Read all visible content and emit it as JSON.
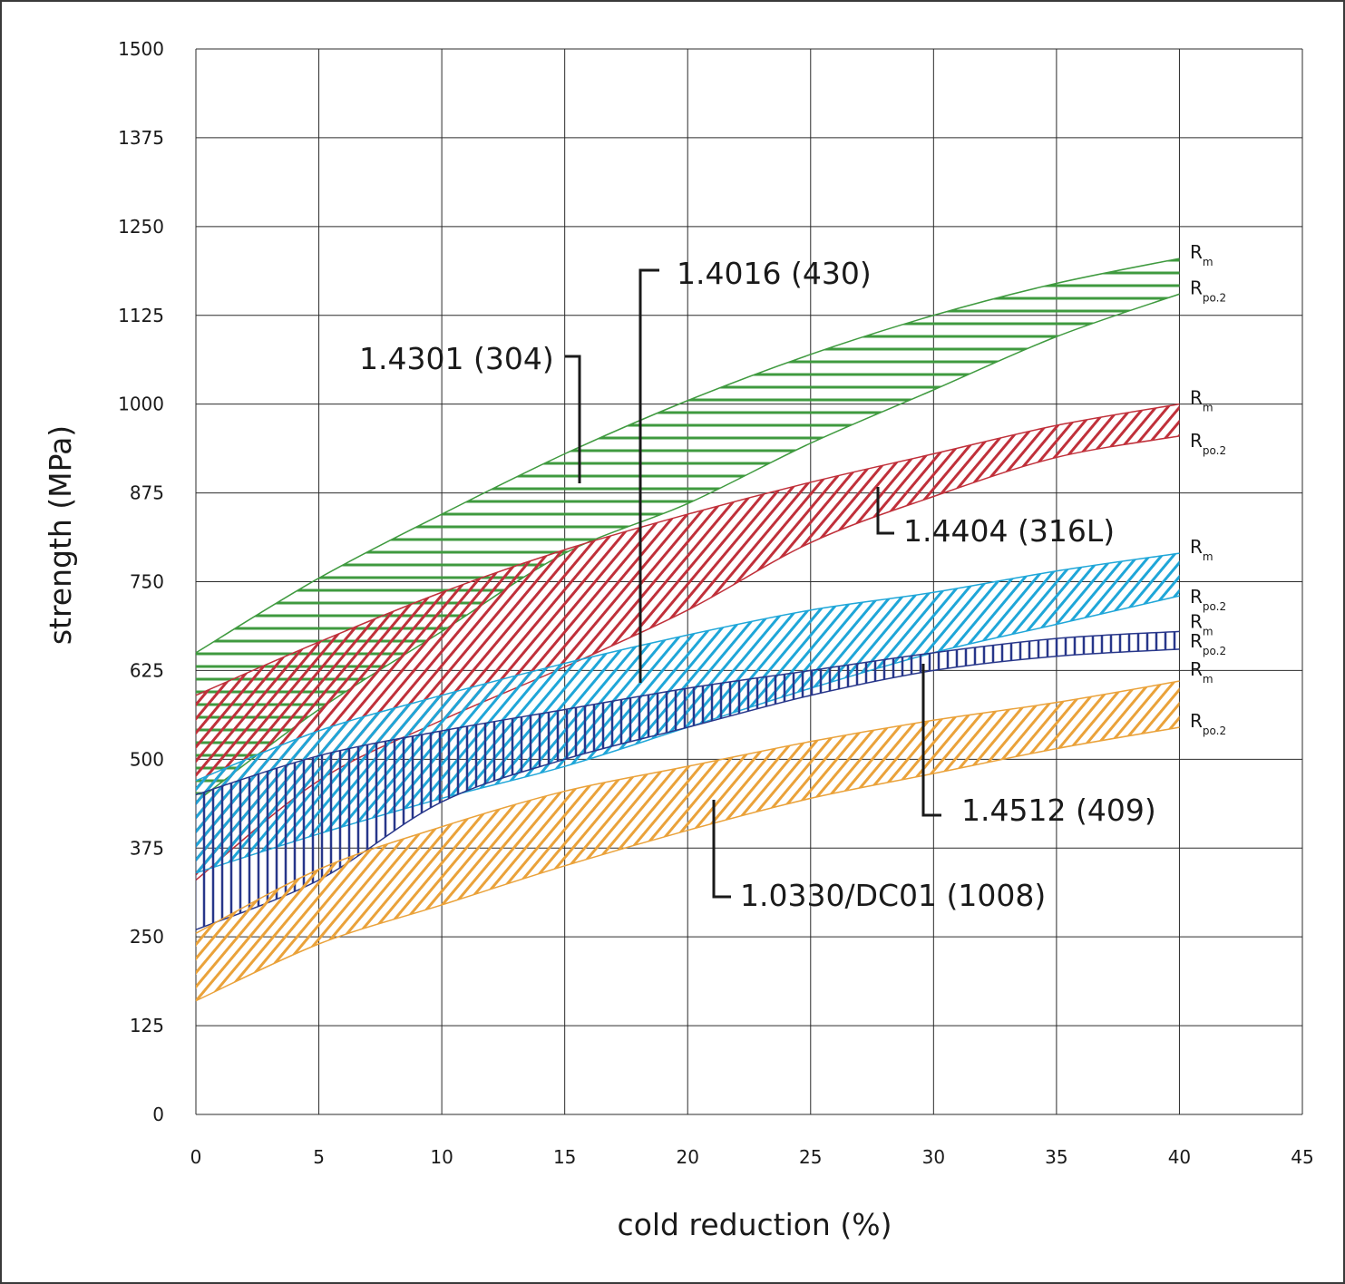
{
  "chart_data": {
    "type": "area",
    "xlabel": "cold reduction (%)",
    "ylabel": "strength (MPa)",
    "xlim": [
      0,
      45
    ],
    "ylim": [
      0,
      1500
    ],
    "xticks": [
      0,
      5,
      10,
      15,
      20,
      25,
      30,
      35,
      40,
      45
    ],
    "yticks": [
      0,
      125,
      250,
      375,
      500,
      625,
      750,
      875,
      1000,
      1125,
      1250,
      1375,
      1500
    ],
    "grid": true,
    "x": [
      0,
      5,
      10,
      15,
      20,
      25,
      30,
      35,
      40
    ],
    "series": [
      {
        "name": "1.4301 (304)",
        "color": "#3f9a3f",
        "hatch": "horizontal",
        "Rm": [
          650,
          755,
          845,
          930,
          1005,
          1070,
          1125,
          1170,
          1205
        ],
        "Rp02": [
          440,
          570,
          680,
          790,
          860,
          945,
          1020,
          1095,
          1155
        ]
      },
      {
        "name": "1.4404 (316L)",
        "color": "#c0303a",
        "hatch": "diagonal",
        "Rm": [
          590,
          665,
          735,
          795,
          845,
          890,
          930,
          970,
          1000
        ],
        "Rp02": [
          330,
          470,
          555,
          630,
          710,
          805,
          870,
          925,
          955
        ]
      },
      {
        "name": "1.4016 (430)",
        "color": "#1fa6d8",
        "hatch": "diagonal",
        "Rm": [
          470,
          540,
          590,
          635,
          675,
          710,
          735,
          765,
          790
        ],
        "Rp02": [
          340,
          395,
          445,
          490,
          545,
          600,
          650,
          690,
          730
        ]
      },
      {
        "name": "1.4512 (409)",
        "color": "#27368a",
        "hatch": "vertical",
        "Rm": [
          450,
          505,
          540,
          570,
          600,
          625,
          650,
          670,
          680
        ],
        "Rp02": [
          260,
          330,
          440,
          500,
          545,
          590,
          625,
          645,
          655
        ]
      },
      {
        "name": "1.0330/DC01 (1008)",
        "color": "#eaa23a",
        "hatch": "diagonal",
        "Rm": [
          255,
          345,
          405,
          455,
          490,
          525,
          555,
          580,
          610
        ],
        "Rp02": [
          160,
          240,
          295,
          350,
          400,
          445,
          480,
          515,
          545
        ]
      }
    ],
    "line_labels": [
      {
        "main": "R",
        "sub": "m"
      },
      {
        "main": "R",
        "sub": "po.2"
      },
      {
        "main": "R",
        "sub": "m"
      },
      {
        "main": "R",
        "sub": "po.2"
      },
      {
        "main": "R",
        "sub": "m"
      },
      {
        "main": "R",
        "sub": "po.2"
      },
      {
        "main": "R",
        "sub": "m"
      },
      {
        "main": "R",
        "sub": "po.2"
      },
      {
        "main": "R",
        "sub": "m"
      },
      {
        "main": "R",
        "sub": "po.2"
      }
    ]
  }
}
